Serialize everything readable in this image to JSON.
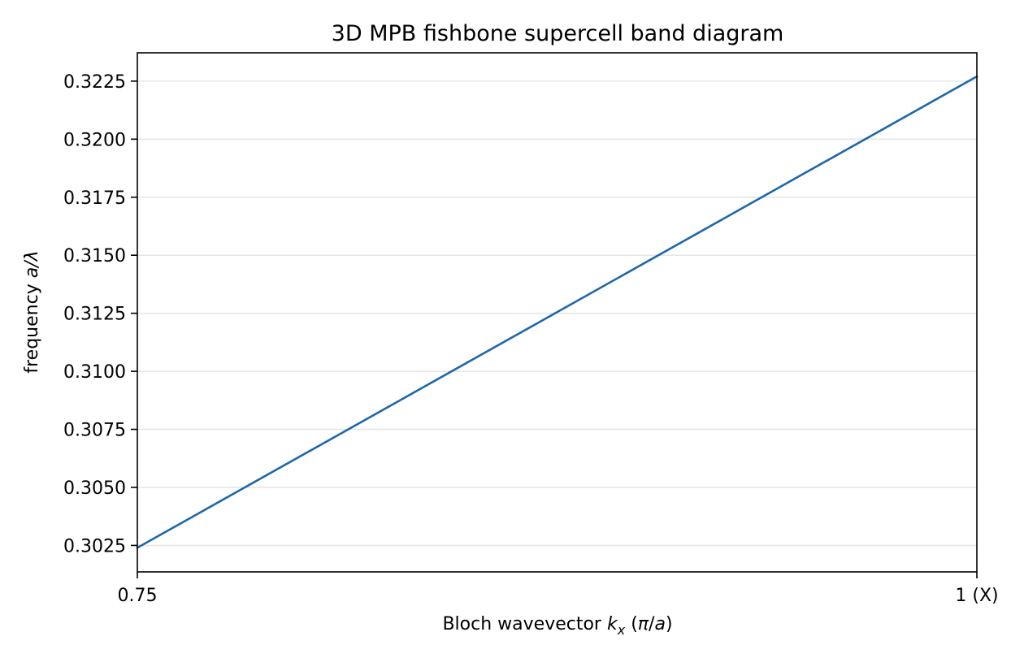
{
  "chart_data": {
    "type": "line",
    "title": "3D MPB fishbone supercell band diagram",
    "xlabel": "Bloch wavevector k_x (π/a)",
    "xlabel_parts": {
      "prefix": "Bloch wavevector ",
      "var": "k",
      "sub": "x",
      "suffix_open": " (",
      "pi": "π",
      "slash": "/",
      "a": "a",
      "suffix_close": ")"
    },
    "ylabel": "frequency a/λ",
    "ylabel_parts": {
      "prefix": "frequency ",
      "italic": "a/λ"
    },
    "xlim": [
      0.75,
      1.0
    ],
    "ylim": [
      0.30136,
      0.32372
    ],
    "xticks": [
      {
        "value": 0.75,
        "label": "0.75"
      },
      {
        "value": 1.0,
        "label": "1 (X)"
      }
    ],
    "yticks": [
      {
        "value": 0.3025,
        "label": "0.3025"
      },
      {
        "value": 0.305,
        "label": "0.3050"
      },
      {
        "value": 0.3075,
        "label": "0.3075"
      },
      {
        "value": 0.31,
        "label": "0.3100"
      },
      {
        "value": 0.3125,
        "label": "0.3125"
      },
      {
        "value": 0.315,
        "label": "0.3150"
      },
      {
        "value": 0.3175,
        "label": "0.3175"
      },
      {
        "value": 0.32,
        "label": "0.3200"
      },
      {
        "value": 0.3225,
        "label": "0.3225"
      }
    ],
    "grid": "horizontal",
    "series": [
      {
        "color": "#1f67a8",
        "x": [
          0.75,
          1.0
        ],
        "y": [
          0.3024,
          0.3227
        ]
      }
    ]
  }
}
